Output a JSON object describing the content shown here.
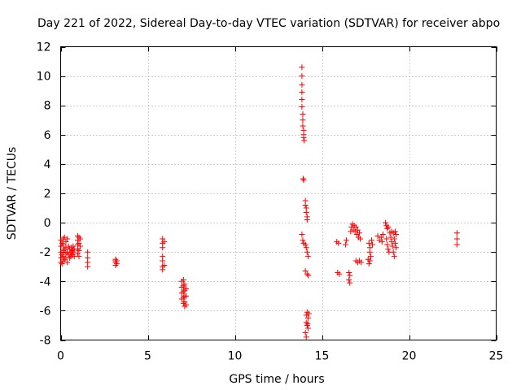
{
  "chart_data": {
    "type": "scatter",
    "title": "Day 221 of 2022, Sidereal Day-to-day VTEC variation (SDTVAR) for receiver abpo",
    "xlabel": "GPS time / hours",
    "ylabel": "SDTVAR / TECUs",
    "xlim": [
      0,
      25
    ],
    "ylim": [
      -8,
      12
    ],
    "xticks": [
      0,
      5,
      10,
      15,
      20,
      25
    ],
    "xtick_labels": [
      "0",
      "5",
      "10",
      "15",
      "20",
      "25"
    ],
    "yticks": [
      -8,
      -6,
      -4,
      -2,
      0,
      2,
      4,
      6,
      8,
      10,
      12
    ],
    "ytick_labels": [
      "-8",
      "-6",
      "-4",
      "-2",
      "0",
      "2",
      "4",
      "6",
      "8",
      "10",
      "12"
    ],
    "grid": true,
    "marker": "+",
    "marker_color": "#ff0000",
    "series": [
      {
        "name": "SDTVAR",
        "points": [
          [
            0.02,
            -1.2
          ],
          [
            0.02,
            -1.6
          ],
          [
            0.02,
            -2.0
          ],
          [
            0.02,
            -2.4
          ],
          [
            0.02,
            -2.7
          ],
          [
            0.08,
            -1.4
          ],
          [
            0.08,
            -2.2
          ],
          [
            0.08,
            -2.8
          ],
          [
            0.15,
            -1.1
          ],
          [
            0.15,
            -1.5
          ],
          [
            0.15,
            -1.9
          ],
          [
            0.15,
            -2.3
          ],
          [
            0.15,
            -2.6
          ],
          [
            0.22,
            -1.0
          ],
          [
            0.22,
            -1.8
          ],
          [
            0.22,
            -2.5
          ],
          [
            0.3,
            -1.3
          ],
          [
            0.3,
            -1.7
          ],
          [
            0.3,
            -2.1
          ],
          [
            0.3,
            -2.4
          ],
          [
            0.38,
            -1.1
          ],
          [
            0.38,
            -2.0
          ],
          [
            0.38,
            -2.7
          ],
          [
            0.45,
            -1.6
          ],
          [
            0.45,
            -2.2
          ],
          [
            0.52,
            -1.8
          ],
          [
            0.52,
            -2.4
          ],
          [
            0.58,
            -2.0
          ],
          [
            0.58,
            -2.3
          ],
          [
            0.62,
            -1.7
          ],
          [
            0.62,
            -2.1
          ],
          [
            0.68,
            -1.9
          ],
          [
            0.68,
            -2.2
          ],
          [
            0.72,
            -1.6
          ],
          [
            0.72,
            -2.0
          ],
          [
            0.78,
            -1.8
          ],
          [
            0.78,
            -2.3
          ],
          [
            0.98,
            -0.9
          ],
          [
            0.98,
            -1.2
          ],
          [
            0.98,
            -1.5
          ],
          [
            0.98,
            -1.8
          ],
          [
            0.98,
            -2.1
          ],
          [
            1.05,
            -1.0
          ],
          [
            1.05,
            -1.4
          ],
          [
            1.05,
            -1.9
          ],
          [
            1.05,
            -2.3
          ],
          [
            1.12,
            -1.1
          ],
          [
            1.12,
            -1.6
          ],
          [
            1.55,
            -2.0
          ],
          [
            1.55,
            -2.4
          ],
          [
            1.55,
            -2.7
          ],
          [
            1.55,
            -3.0
          ],
          [
            3.15,
            -2.5
          ],
          [
            3.15,
            -2.7
          ],
          [
            3.15,
            -2.9
          ],
          [
            3.15,
            -2.6
          ],
          [
            3.22,
            -2.6
          ],
          [
            3.22,
            -2.8
          ],
          [
            5.85,
            -1.1
          ],
          [
            5.85,
            -1.4
          ],
          [
            5.85,
            -1.7
          ],
          [
            5.85,
            -2.3
          ],
          [
            5.85,
            -2.6
          ],
          [
            5.85,
            -3.0
          ],
          [
            5.85,
            -3.2
          ],
          [
            5.95,
            -1.3
          ],
          [
            5.95,
            -2.9
          ],
          [
            6.95,
            -4.0
          ],
          [
            6.95,
            -4.4
          ],
          [
            6.95,
            -4.8
          ],
          [
            6.95,
            -5.2
          ],
          [
            7.05,
            -3.9
          ],
          [
            7.05,
            -4.3
          ],
          [
            7.05,
            -4.7
          ],
          [
            7.05,
            -5.1
          ],
          [
            7.05,
            -5.5
          ],
          [
            7.12,
            -4.2
          ],
          [
            7.12,
            -4.6
          ],
          [
            7.12,
            -5.0
          ],
          [
            7.12,
            -5.4
          ],
          [
            7.12,
            -5.7
          ],
          [
            7.2,
            -4.5
          ],
          [
            7.2,
            -5.0
          ],
          [
            7.2,
            -5.6
          ],
          [
            13.85,
            10.6
          ],
          [
            13.85,
            10.0
          ],
          [
            13.85,
            9.4
          ],
          [
            13.85,
            8.9
          ],
          [
            13.85,
            8.4
          ],
          [
            13.85,
            7.9
          ],
          [
            13.9,
            7.4
          ],
          [
            13.9,
            7.0
          ],
          [
            13.9,
            6.6
          ],
          [
            13.95,
            6.3
          ],
          [
            13.95,
            6.0
          ],
          [
            13.95,
            5.8
          ],
          [
            13.98,
            5.6
          ],
          [
            13.92,
            3.0
          ],
          [
            13.95,
            2.9
          ],
          [
            14.05,
            1.5
          ],
          [
            14.05,
            1.2
          ],
          [
            14.1,
            1.0
          ],
          [
            14.1,
            0.7
          ],
          [
            14.15,
            0.4
          ],
          [
            14.15,
            0.2
          ],
          [
            13.85,
            -0.8
          ],
          [
            13.9,
            -1.2
          ],
          [
            13.95,
            -1.4
          ],
          [
            14.05,
            -1.5
          ],
          [
            14.1,
            -1.7
          ],
          [
            14.15,
            -2.0
          ],
          [
            14.2,
            -2.3
          ],
          [
            14.05,
            -3.3
          ],
          [
            14.15,
            -3.5
          ],
          [
            14.22,
            -3.6
          ],
          [
            14.1,
            -6.3
          ],
          [
            14.15,
            -6.1
          ],
          [
            14.2,
            -6.5
          ],
          [
            14.25,
            -6.2
          ],
          [
            14.1,
            -6.8
          ],
          [
            14.15,
            -7.0
          ],
          [
            14.2,
            -7.2
          ],
          [
            14.05,
            -7.5
          ],
          [
            14.1,
            -7.8
          ],
          [
            14.18,
            -6.9
          ],
          [
            15.85,
            -1.3
          ],
          [
            15.95,
            -1.4
          ],
          [
            15.9,
            -3.4
          ],
          [
            16.0,
            -3.5
          ],
          [
            16.35,
            -1.5
          ],
          [
            16.4,
            -1.2
          ],
          [
            16.55,
            -3.4
          ],
          [
            16.6,
            -3.6
          ],
          [
            16.55,
            -3.9
          ],
          [
            16.6,
            -4.1
          ],
          [
            16.65,
            -0.6
          ],
          [
            16.7,
            -0.3
          ],
          [
            16.75,
            -0.1
          ],
          [
            16.8,
            -0.5
          ],
          [
            16.85,
            -0.2
          ],
          [
            16.9,
            -0.6
          ],
          [
            16.95,
            -0.3
          ],
          [
            17.0,
            -0.8
          ],
          [
            17.05,
            -0.5
          ],
          [
            17.1,
            -1.0
          ],
          [
            17.15,
            -0.7
          ],
          [
            17.2,
            -1.1
          ],
          [
            16.95,
            -2.6
          ],
          [
            17.05,
            -2.7
          ],
          [
            17.15,
            -2.6
          ],
          [
            17.25,
            -2.7
          ],
          [
            17.7,
            -1.4
          ],
          [
            17.75,
            -1.7
          ],
          [
            17.75,
            -2.0
          ],
          [
            17.8,
            -2.3
          ],
          [
            17.65,
            -2.5
          ],
          [
            17.7,
            -2.8
          ],
          [
            17.75,
            -2.6
          ],
          [
            17.85,
            -1.2
          ],
          [
            17.9,
            -1.5
          ],
          [
            18.2,
            -0.9
          ],
          [
            18.3,
            -1.2
          ],
          [
            18.4,
            -1.0
          ],
          [
            18.45,
            -1.3
          ],
          [
            18.5,
            -0.8
          ],
          [
            18.65,
            0.0
          ],
          [
            18.7,
            -0.2
          ],
          [
            18.75,
            -0.4
          ],
          [
            18.8,
            -0.3
          ],
          [
            18.7,
            -1.1
          ],
          [
            18.75,
            -1.5
          ],
          [
            18.8,
            -1.8
          ],
          [
            18.85,
            -2.0
          ],
          [
            18.9,
            -0.7
          ],
          [
            18.95,
            -1.0
          ],
          [
            19.0,
            -1.3
          ],
          [
            19.05,
            -1.6
          ],
          [
            19.1,
            -2.0
          ],
          [
            19.15,
            -2.3
          ],
          [
            19.0,
            -0.6
          ],
          [
            19.1,
            -0.7
          ],
          [
            19.2,
            -0.6
          ],
          [
            19.25,
            -0.8
          ],
          [
            19.15,
            -1.1
          ],
          [
            19.2,
            -1.4
          ],
          [
            19.25,
            -1.7
          ],
          [
            22.75,
            -0.7
          ],
          [
            22.75,
            -1.1
          ],
          [
            22.75,
            -1.5
          ]
        ]
      }
    ]
  }
}
